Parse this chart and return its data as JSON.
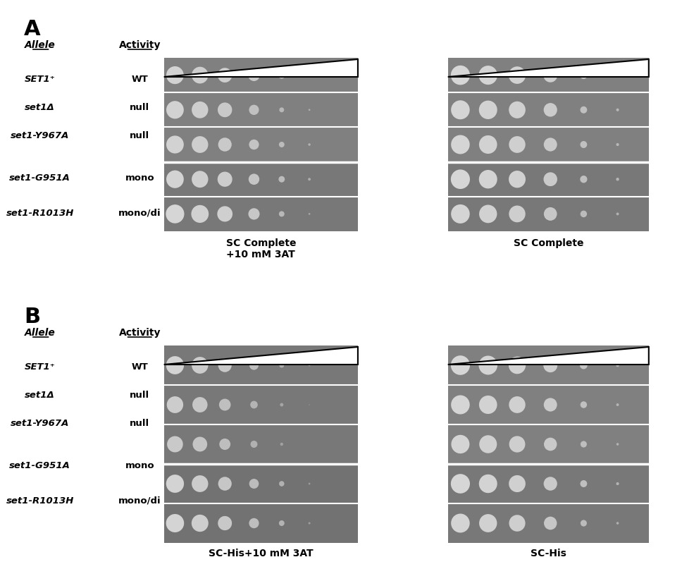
{
  "panel_A_label": "A",
  "panel_B_label": "B",
  "allele_header": "Allele",
  "activity_header": "Activity",
  "alleles": [
    "SET1⁺",
    "set1Δ",
    "set1-Y967A",
    "set1-G951A",
    "set1-R1013H"
  ],
  "activities": [
    "WT",
    "null",
    "null",
    "mono",
    "mono/di"
  ],
  "panel_A_left_title": "SC Complete\n+10 mM 3AT",
  "panel_A_right_title": "SC Complete",
  "panel_B_left_title": "SC-His+10 mM 3AT",
  "panel_B_right_title": "SC-His",
  "bg_color_dark": "#808080",
  "bg_color_medium": "#909090",
  "bg_color_light_row": "#a0a0a0",
  "separator_color": "#cccccc",
  "dot_color": "#e8e8e8",
  "text_color": "#000000",
  "white": "#ffffff",
  "num_dilutions": 6,
  "num_rows": 5
}
